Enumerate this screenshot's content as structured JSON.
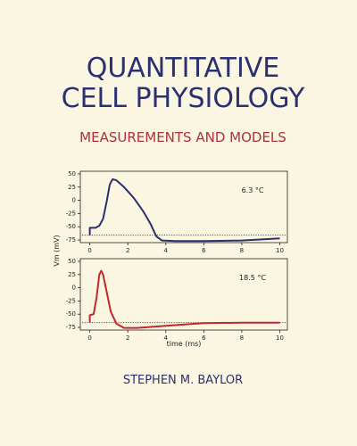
{
  "cover": {
    "title_line1": "QUANTITATIVE",
    "title_line2": "CELL PHYSIOLOGY",
    "subtitle": "MEASUREMENTS AND MODELS",
    "author": "STEPHEN M. BAYLOR"
  },
  "chart_data": [
    {
      "type": "line",
      "annotation": "6.3 °C",
      "ylabel": "Vm (mV)",
      "color": "#2a2f6e",
      "x": [
        0,
        0,
        0.3,
        0.5,
        0.7,
        0.9,
        1.05,
        1.2,
        1.4,
        1.8,
        2.3,
        2.8,
        3.2,
        3.5,
        3.8,
        4.5,
        6,
        8,
        10
      ],
      "values": [
        -66,
        -52,
        -52,
        -48,
        -35,
        0,
        30,
        40,
        38,
        25,
        5,
        -20,
        -45,
        -68,
        -76,
        -77,
        -77,
        -76,
        -72
      ],
      "reference_line": -66,
      "xlim": [
        -0.5,
        10.4
      ],
      "ylim": [
        -80,
        55
      ],
      "xticks": [
        0,
        2,
        4,
        6,
        8,
        10
      ],
      "yticks": [
        50,
        25,
        0,
        -25,
        -50,
        -75
      ]
    },
    {
      "type": "line",
      "annotation": "18.5 °C",
      "xlabel": "time (ms)",
      "color": "#c0282d",
      "x": [
        0,
        0,
        0.2,
        0.35,
        0.5,
        0.6,
        0.7,
        0.9,
        1.1,
        1.4,
        1.8,
        2.5,
        4,
        6,
        8,
        10
      ],
      "values": [
        -66,
        -52,
        -50,
        -20,
        25,
        32,
        25,
        -10,
        -45,
        -68,
        -76,
        -76,
        -72,
        -67,
        -66,
        -66
      ],
      "reference_line": -66,
      "xlim": [
        -0.5,
        10.4
      ],
      "ylim": [
        -80,
        55
      ],
      "xticks": [
        0,
        2,
        4,
        6,
        8,
        10
      ],
      "yticks": [
        50,
        25,
        0,
        -25,
        -50,
        -75
      ]
    }
  ]
}
